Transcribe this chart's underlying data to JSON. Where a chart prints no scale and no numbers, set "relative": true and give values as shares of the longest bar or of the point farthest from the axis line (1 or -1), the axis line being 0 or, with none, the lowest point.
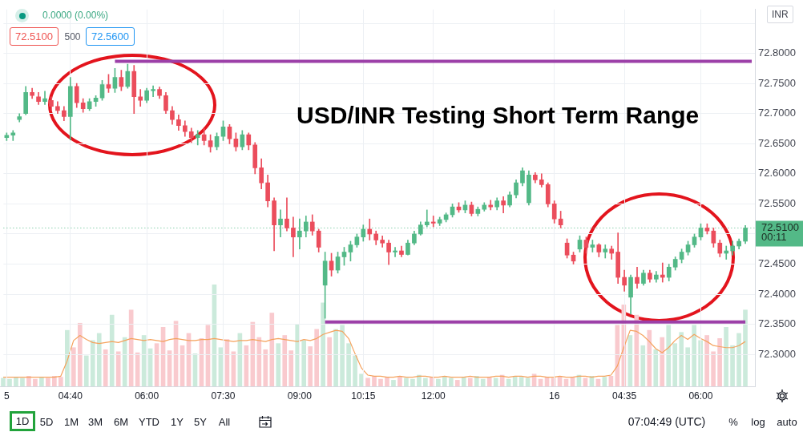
{
  "chart_data": [
    {
      "type": "candlestick",
      "title": "USD/INR Testing Short Term Range",
      "ylabel": "INR",
      "categories": [
        "5",
        null,
        null,
        null,
        null,
        null,
        null,
        null,
        null,
        null,
        "04:40",
        null,
        null,
        null,
        null,
        null,
        null,
        null,
        null,
        null,
        null,
        null,
        "06:00",
        null,
        null,
        null,
        null,
        null,
        null,
        null,
        null,
        null,
        null,
        null,
        "07:30",
        null,
        null,
        null,
        null,
        null,
        null,
        null,
        null,
        null,
        null,
        null,
        "09:00",
        null,
        null,
        null,
        null,
        null,
        null,
        null,
        null,
        null,
        "10:15",
        null,
        null,
        null,
        null,
        null,
        null,
        null,
        null,
        null,
        null,
        "12:00",
        null,
        null,
        null,
        null,
        null,
        null,
        null,
        null,
        null,
        null,
        null,
        null,
        null,
        null,
        null,
        null,
        null,
        null,
        "16",
        null,
        null,
        null,
        null,
        null,
        null,
        null,
        null,
        null,
        null,
        "04:35",
        null,
        null,
        null,
        null,
        null,
        null,
        null,
        null,
        null,
        null,
        null,
        "06:00",
        null,
        null,
        null,
        null,
        null,
        null,
        null,
        null
      ],
      "ohlc": [
        [
          72.66,
          72.668,
          72.655,
          72.664
        ],
        [
          72.664,
          72.672,
          72.655,
          72.668
        ],
        [
          72.69,
          72.7,
          72.686,
          72.695
        ],
        [
          72.7,
          72.745,
          72.698,
          72.735
        ],
        [
          72.735,
          72.742,
          72.725,
          72.73
        ],
        [
          72.728,
          72.735,
          72.715,
          72.72
        ],
        [
          72.72,
          72.737,
          72.715,
          72.725
        ],
        [
          72.722,
          72.728,
          72.705,
          72.712
        ],
        [
          72.712,
          72.72,
          72.7,
          72.705
        ],
        [
          72.705,
          72.712,
          72.688,
          72.695
        ],
        [
          72.695,
          72.76,
          72.656,
          72.745
        ],
        [
          72.745,
          72.75,
          72.71,
          72.718
        ],
        [
          72.718,
          72.725,
          72.702,
          72.708
        ],
        [
          72.708,
          72.725,
          72.705,
          72.72
        ],
        [
          72.72,
          72.73,
          72.712,
          72.726
        ],
        [
          72.726,
          72.755,
          72.722,
          72.748
        ],
        [
          72.748,
          72.765,
          72.735,
          72.742
        ],
        [
          72.742,
          72.775,
          72.735,
          72.76
        ],
        [
          72.76,
          72.772,
          72.738,
          72.745
        ],
        [
          72.745,
          72.782,
          72.742,
          72.77
        ],
        [
          72.77,
          72.78,
          72.7,
          72.728
        ],
        [
          72.728,
          72.74,
          72.712,
          72.722
        ],
        [
          72.722,
          72.742,
          72.718,
          72.738
        ],
        [
          72.738,
          72.746,
          72.728,
          72.74
        ],
        [
          72.74,
          72.744,
          72.725,
          72.73
        ],
        [
          72.73,
          72.735,
          72.7,
          72.705
        ],
        [
          72.705,
          72.712,
          72.682,
          72.69
        ],
        [
          72.69,
          72.698,
          72.672,
          72.68
        ],
        [
          72.68,
          72.688,
          72.662,
          72.67
        ],
        [
          72.67,
          72.676,
          72.652,
          72.66
        ],
        [
          72.66,
          72.672,
          72.648,
          72.665
        ],
        [
          72.665,
          72.675,
          72.648,
          72.655
        ],
        [
          72.655,
          72.665,
          72.636,
          72.645
        ],
        [
          72.645,
          72.668,
          72.64,
          72.662
        ],
        [
          72.662,
          72.688,
          72.655,
          72.678
        ],
        [
          72.678,
          72.682,
          72.65,
          72.658
        ],
        [
          72.658,
          72.668,
          72.638,
          72.645
        ],
        [
          72.645,
          72.672,
          72.64,
          72.665
        ],
        [
          72.665,
          72.668,
          72.64,
          72.648
        ],
        [
          72.648,
          72.652,
          72.6,
          72.61
        ],
        [
          72.61,
          72.625,
          72.575,
          72.585
        ],
        [
          72.585,
          72.598,
          72.545,
          72.555
        ],
        [
          72.555,
          72.56,
          72.472,
          72.515
        ],
        [
          72.515,
          72.54,
          72.495,
          72.525
        ],
        [
          72.525,
          72.56,
          72.505,
          72.51
        ],
        [
          72.51,
          72.528,
          72.462,
          72.495
        ],
        [
          72.495,
          72.525,
          72.475,
          72.505
        ],
        [
          72.505,
          72.53,
          72.495,
          72.52
        ],
        [
          72.52,
          72.532,
          72.498,
          72.505
        ],
        [
          72.505,
          72.508,
          72.47,
          72.478
        ],
        [
          72.415,
          72.47,
          72.36,
          72.455
        ],
        [
          72.455,
          72.468,
          72.43,
          72.44
        ],
        [
          72.44,
          72.47,
          72.435,
          72.462
        ],
        [
          72.462,
          72.478,
          72.448,
          72.47
        ],
        [
          72.47,
          72.488,
          72.455,
          72.482
        ],
        [
          72.482,
          72.5,
          72.478,
          72.495
        ],
        [
          72.495,
          72.515,
          72.488,
          72.508
        ],
        [
          72.508,
          72.525,
          72.49,
          72.5
        ],
        [
          72.5,
          72.505,
          72.482,
          72.49
        ],
        [
          72.49,
          72.497,
          72.478,
          72.485
        ],
        [
          72.485,
          72.49,
          72.449,
          72.47
        ],
        [
          72.47,
          72.478,
          72.462,
          72.472
        ],
        [
          72.472,
          72.48,
          72.462,
          72.466
        ],
        [
          72.466,
          72.49,
          72.465,
          72.485
        ],
        [
          72.485,
          72.505,
          72.482,
          72.5
        ],
        [
          72.5,
          72.52,
          72.498,
          72.515
        ],
        [
          72.515,
          72.54,
          72.512,
          72.52
        ],
        [
          72.52,
          72.53,
          72.512,
          72.518
        ],
        [
          72.518,
          72.528,
          72.514,
          72.524
        ],
        [
          72.524,
          72.535,
          72.52,
          72.532
        ],
        [
          72.532,
          72.55,
          72.528,
          72.545
        ],
        [
          72.545,
          72.552,
          72.536,
          72.54
        ],
        [
          72.54,
          72.555,
          72.535,
          72.548
        ],
        [
          72.548,
          72.553,
          72.53,
          72.534
        ],
        [
          72.534,
          72.545,
          72.53,
          72.541
        ],
        [
          72.541,
          72.552,
          72.538,
          72.548
        ],
        [
          72.548,
          72.556,
          72.54,
          72.545
        ],
        [
          72.545,
          72.56,
          72.54,
          72.555
        ],
        [
          72.555,
          72.562,
          72.535,
          72.548
        ],
        [
          72.548,
          72.57,
          72.545,
          72.565
        ],
        [
          72.565,
          72.59,
          72.56,
          72.585
        ],
        [
          72.585,
          72.61,
          72.58,
          72.605
        ],
        [
          72.552,
          72.605,
          72.548,
          72.598
        ],
        [
          72.598,
          72.602,
          72.585,
          72.59
        ],
        [
          72.59,
          72.6,
          72.578,
          72.582
        ],
        [
          72.582,
          72.585,
          72.545,
          72.55
        ],
        [
          72.55,
          72.555,
          72.518,
          72.525
        ],
        [
          72.525,
          72.538,
          72.51,
          72.515
        ],
        [
          72.485,
          72.492,
          72.46,
          72.465
        ],
        [
          72.465,
          72.47,
          72.45,
          72.455
        ],
        [
          72.475,
          72.497,
          72.47,
          72.49
        ],
        [
          72.49,
          72.495,
          72.468,
          72.478
        ],
        [
          72.478,
          72.49,
          72.47,
          72.482
        ],
        [
          72.482,
          72.484,
          72.462,
          72.47
        ],
        [
          72.47,
          72.482,
          72.46,
          72.475
        ],
        [
          72.475,
          72.48,
          72.458,
          72.468
        ],
        [
          72.47,
          72.502,
          72.418,
          72.428
        ],
        [
          72.428,
          72.44,
          72.405,
          72.415
        ],
        [
          72.395,
          72.432,
          72.367,
          72.428
        ],
        [
          72.428,
          72.445,
          72.41,
          72.418
        ],
        [
          72.418,
          72.44,
          72.415,
          72.435
        ],
        [
          72.435,
          72.44,
          72.42,
          72.425
        ],
        [
          72.425,
          72.438,
          72.42,
          72.432
        ],
        [
          72.432,
          72.452,
          72.42,
          72.428
        ],
        [
          72.428,
          72.45,
          72.422,
          72.445
        ],
        [
          72.445,
          72.462,
          72.44,
          72.458
        ],
        [
          72.458,
          72.475,
          72.452,
          72.47
        ],
        [
          72.47,
          72.488,
          72.465,
          72.482
        ],
        [
          72.482,
          72.5,
          72.478,
          72.495
        ],
        [
          72.495,
          72.517,
          72.49,
          72.51
        ],
        [
          72.51,
          72.517,
          72.5,
          72.505
        ],
        [
          72.505,
          72.51,
          72.478,
          72.485
        ],
        [
          72.485,
          72.49,
          72.462,
          72.468
        ],
        [
          72.468,
          72.48,
          72.458,
          72.472
        ],
        [
          72.472,
          72.488,
          72.465,
          72.48
        ],
        [
          72.48,
          72.492,
          72.475,
          72.488
        ],
        [
          72.488,
          72.514,
          72.484,
          72.51
        ],
        null
      ],
      "colors": [
        "#53b987",
        "#53b987",
        "#53b987",
        "#53b987",
        "#eb4d5c",
        "#eb4d5c",
        "#53b987",
        "#eb4d5c",
        "#eb4d5c",
        "#eb4d5c",
        "#53b987",
        "#eb4d5c",
        "#eb4d5c",
        "#53b987",
        "#53b987",
        "#53b987",
        "#eb4d5c",
        "#53b987",
        "#eb4d5c",
        "#53b987",
        "#eb4d5c",
        "#eb4d5c",
        "#53b987",
        "#53b987",
        "#eb4d5c",
        "#eb4d5c",
        "#eb4d5c",
        "#eb4d5c",
        "#eb4d5c",
        "#eb4d5c",
        "#53b987",
        "#eb4d5c",
        "#eb4d5c",
        "#53b987",
        "#53b987",
        "#eb4d5c",
        "#eb4d5c",
        "#53b987",
        "#eb4d5c",
        "#eb4d5c",
        "#eb4d5c",
        "#eb4d5c",
        "#eb4d5c",
        "#53b987",
        "#eb4d5c",
        "#eb4d5c",
        "#53b987",
        "#53b987",
        "#eb4d5c",
        "#eb4d5c",
        "#53b987",
        "#eb4d5c",
        "#53b987",
        "#53b987",
        "#53b987",
        "#53b987",
        "#53b987",
        "#eb4d5c",
        "#eb4d5c",
        "#eb4d5c",
        "#eb4d5c",
        "#53b987",
        "#eb4d5c",
        "#53b987",
        "#53b987",
        "#53b987",
        "#53b987",
        "#eb4d5c",
        "#53b987",
        "#53b987",
        "#53b987",
        "#eb4d5c",
        "#53b987",
        "#eb4d5c",
        "#53b987",
        "#53b987",
        "#eb4d5c",
        "#53b987",
        "#eb4d5c",
        "#53b987",
        "#53b987",
        "#53b987",
        "#53b987",
        "#eb4d5c",
        "#eb4d5c",
        "#eb4d5c",
        "#eb4d5c",
        "#eb4d5c",
        "#eb4d5c",
        "#eb4d5c",
        "#53b987",
        "#eb4d5c",
        "#53b987",
        "#eb4d5c",
        "#53b987",
        "#eb4d5c",
        "#eb4d5c",
        "#eb4d5c",
        "#53b987",
        "#eb4d5c",
        "#53b987",
        "#eb4d5c",
        "#53b987",
        "#eb4d5c",
        "#53b987",
        "#53b987",
        "#53b987",
        "#53b987",
        "#53b987",
        "#53b987",
        "#eb4d5c",
        "#eb4d5c",
        "#eb4d5c",
        "#53b987",
        "#53b987",
        "#53b987",
        "#53b987",
        null
      ],
      "series": [
        {
          "type": "line",
          "color": "#9c40a8",
          "values": [
            null,
            null,
            null,
            null,
            null,
            null,
            null,
            null,
            null,
            null,
            null,
            null,
            null,
            null,
            null,
            null,
            null,
            72.787,
            72.787,
            72.787,
            72.787,
            72.787,
            72.787,
            72.787,
            72.787,
            72.787,
            72.787,
            72.787,
            72.787,
            72.787,
            72.787,
            72.787,
            72.787,
            72.787,
            72.787,
            72.787,
            72.787,
            72.787,
            72.787,
            72.787,
            72.787,
            72.787,
            72.787,
            72.787,
            72.787,
            72.787,
            72.787,
            72.787,
            72.787,
            72.787,
            72.787,
            72.787,
            72.787,
            72.787,
            72.787,
            72.787,
            72.787,
            72.787,
            72.787,
            72.787,
            72.787,
            72.787,
            72.787,
            72.787,
            72.787,
            72.787,
            72.787,
            72.787,
            72.787,
            72.787,
            72.787,
            72.787,
            72.787,
            72.787,
            72.787,
            72.787,
            72.787,
            72.787,
            72.787,
            72.787,
            72.787,
            72.787,
            72.787,
            72.787,
            72.787,
            72.787,
            72.787,
            72.787,
            72.787,
            72.787,
            72.787,
            72.787,
            72.787,
            72.787,
            72.787,
            72.787,
            72.787,
            72.787,
            72.787,
            72.787,
            72.787,
            72.787,
            72.787,
            72.787,
            72.787,
            72.787,
            72.787,
            72.787,
            72.787,
            72.787,
            72.787,
            72.787,
            72.787,
            72.787,
            72.787,
            72.787,
            72.787,
            72.787
          ]
        },
        {
          "type": "line",
          "color": "#9c40a8",
          "values": [
            null,
            null,
            null,
            null,
            null,
            null,
            null,
            null,
            null,
            null,
            null,
            null,
            null,
            null,
            null,
            null,
            null,
            null,
            null,
            null,
            null,
            null,
            null,
            null,
            null,
            null,
            null,
            null,
            null,
            null,
            null,
            null,
            null,
            null,
            null,
            null,
            null,
            null,
            null,
            null,
            null,
            null,
            null,
            null,
            null,
            null,
            null,
            null,
            null,
            null,
            72.354,
            72.354,
            72.354,
            72.354,
            72.354,
            72.354,
            72.354,
            72.354,
            72.354,
            72.354,
            72.354,
            72.354,
            72.354,
            72.354,
            72.354,
            72.354,
            72.354,
            72.354,
            72.354,
            72.354,
            72.354,
            72.354,
            72.354,
            72.354,
            72.354,
            72.354,
            72.354,
            72.354,
            72.354,
            72.354,
            72.354,
            72.354,
            72.354,
            72.354,
            72.354,
            72.354,
            72.354,
            72.354,
            72.354,
            72.354,
            72.354,
            72.354,
            72.354,
            72.354,
            72.354,
            72.354,
            72.354,
            72.354,
            72.354,
            72.354,
            72.354,
            72.354,
            72.354,
            72.354,
            72.354,
            72.354,
            72.354,
            72.354,
            72.354,
            72.354,
            72.354,
            72.354,
            72.354,
            72.354,
            72.354,
            72.354,
            72.354,
            null
          ]
        }
      ],
      "ylim": [
        72.247,
        72.873
      ],
      "yticks": [
        {
          "value": 72.3,
          "label": "72.3000"
        },
        {
          "value": 72.35,
          "label": "72.3500"
        },
        {
          "value": 72.4,
          "label": "72.4000"
        },
        {
          "value": 72.45,
          "label": "72.4500"
        },
        {
          "value": 72.5,
          "label": null
        },
        {
          "value": 72.55,
          "label": "72.5500"
        },
        {
          "value": 72.6,
          "label": "72.6000"
        },
        {
          "value": 72.65,
          "label": "72.6500"
        },
        {
          "value": 72.7,
          "label": "72.7000"
        },
        {
          "value": 72.75,
          "label": "72.7500"
        },
        {
          "value": 72.8,
          "label": "72.8000"
        },
        {
          "value": 72.85,
          "label": null
        }
      ],
      "grid": true,
      "ref_lines": [
        {
          "axis": "y",
          "value": 72.51,
          "label": "72.5100",
          "color": "#53b987",
          "line_style": "dotted"
        }
      ],
      "annotations": [
        "0.0000 (0.00%)",
        "72.5100",
        "500",
        "72.5600",
        "00:11",
        "1D",
        "5D",
        "1M",
        "3M",
        "6M",
        "YTD",
        "1Y",
        "5Y",
        "All",
        "07:04:49 (UTC)",
        "%",
        "log",
        "auto"
      ]
    },
    {
      "type": "bar",
      "relative": true,
      "categories": [
        null,
        null,
        null,
        null,
        null,
        null,
        null,
        null,
        null,
        null,
        null,
        null,
        null,
        null,
        null,
        null,
        null,
        null,
        null,
        null,
        null,
        null,
        null,
        null,
        null,
        null,
        null,
        null,
        null,
        null,
        null,
        null,
        null,
        null,
        null,
        null,
        null,
        null,
        null,
        null,
        null,
        null,
        null,
        null,
        null,
        null,
        null,
        null,
        null,
        null,
        null,
        null,
        null,
        null,
        null,
        null,
        null,
        null,
        null,
        null,
        null,
        null,
        null,
        null,
        null,
        null,
        null,
        null,
        null,
        null,
        null,
        null,
        null,
        null,
        null,
        null,
        null,
        null,
        null,
        null,
        null,
        null,
        null,
        null,
        null,
        null,
        null,
        null,
        null,
        null,
        null,
        null,
        null,
        null,
        null,
        null,
        null,
        null,
        null,
        null,
        null,
        null,
        null,
        null,
        null,
        null,
        null,
        null,
        null,
        null,
        null,
        null,
        null,
        null,
        null,
        null,
        null,
        null
      ],
      "series": [
        {
          "type": "bar",
          "values": [
            0.08,
            0.07,
            0.09,
            0.08,
            0.1,
            0.07,
            0.09,
            0.08,
            0.1,
            0.09,
            0.55,
            0.38,
            0.62,
            0.3,
            0.45,
            0.52,
            0.36,
            0.7,
            0.34,
            0.48,
            0.75,
            0.33,
            0.5,
            0.37,
            0.42,
            0.58,
            0.35,
            0.64,
            0.4,
            0.52,
            0.32,
            0.47,
            0.6,
            1,
            0.38,
            0.46,
            0.34,
            0.52,
            0.4,
            0.63,
            0.48,
            0.36,
            0.72,
            0.42,
            0.5,
            0.35,
            0.61,
            0.45,
            0.39,
            0.56,
            0.82,
            0.48,
            0.56,
            0.6,
            0.42,
            0.3,
            0.12,
            0.08,
            0.1,
            0.07,
            0.09,
            0.06,
            0.1,
            0.08,
            0.07,
            0.11,
            0.08,
            0.09,
            0.07,
            0.1,
            0.08,
            0.06,
            0.09,
            0.08,
            0.1,
            0.07,
            0.09,
            0.08,
            0.11,
            0.07,
            0.1,
            0.09,
            0.08,
            0.12,
            0.07,
            0.09,
            0.08,
            0.1,
            0.07,
            0.09,
            0.11,
            0.08,
            0.1,
            0.07,
            0.09,
            0.1,
            0.6,
            0.8,
            0.5,
            0.7,
            0.4,
            0.55,
            0.36,
            0.48,
            0.6,
            0.42,
            0.53,
            0.38,
            0.6,
            0.45,
            0.5,
            0.34,
            0.47,
            0.58,
            0.4,
            0.52,
            0.75,
            null
          ],
          "colors": [
            "#cbeadb",
            "#cbeadb",
            "#cbeadb",
            "#cbeadb",
            "#f9cace",
            "#f9cace",
            "#cbeadb",
            "#f9cace",
            "#f9cace",
            "#f9cace",
            "#cbeadb",
            "#f9cace",
            "#f9cace",
            "#cbeadb",
            "#cbeadb",
            "#cbeadb",
            "#f9cace",
            "#cbeadb",
            "#f9cace",
            "#cbeadb",
            "#f9cace",
            "#f9cace",
            "#cbeadb",
            "#cbeadb",
            "#f9cace",
            "#f9cace",
            "#f9cace",
            "#f9cace",
            "#f9cace",
            "#f9cace",
            "#cbeadb",
            "#f9cace",
            "#f9cace",
            "#cbeadb",
            "#cbeadb",
            "#f9cace",
            "#f9cace",
            "#cbeadb",
            "#f9cace",
            "#f9cace",
            "#f9cace",
            "#f9cace",
            "#f9cace",
            "#cbeadb",
            "#f9cace",
            "#f9cace",
            "#cbeadb",
            "#cbeadb",
            "#f9cace",
            "#f9cace",
            "#cbeadb",
            "#f9cace",
            "#cbeadb",
            "#cbeadb",
            "#cbeadb",
            "#cbeadb",
            "#cbeadb",
            "#f9cace",
            "#f9cace",
            "#f9cace",
            "#f9cace",
            "#cbeadb",
            "#f9cace",
            "#cbeadb",
            "#cbeadb",
            "#cbeadb",
            "#cbeadb",
            "#f9cace",
            "#cbeadb",
            "#cbeadb",
            "#cbeadb",
            "#f9cace",
            "#cbeadb",
            "#f9cace",
            "#cbeadb",
            "#cbeadb",
            "#f9cace",
            "#cbeadb",
            "#f9cace",
            "#cbeadb",
            "#cbeadb",
            "#cbeadb",
            "#cbeadb",
            "#f9cace",
            "#f9cace",
            "#f9cace",
            "#f9cace",
            "#f9cace",
            "#f9cace",
            "#f9cace",
            "#cbeadb",
            "#f9cace",
            "#cbeadb",
            "#f9cace",
            "#cbeadb",
            "#f9cace",
            "#f9cace",
            "#f9cace",
            "#cbeadb",
            "#f9cace",
            "#cbeadb",
            "#f9cace",
            "#cbeadb",
            "#f9cace",
            "#cbeadb",
            "#cbeadb",
            "#cbeadb",
            "#cbeadb",
            "#cbeadb",
            "#cbeadb",
            "#f9cace",
            "#f9cace",
            "#f9cace",
            "#cbeadb",
            "#cbeadb",
            "#cbeadb",
            "#cbeadb",
            null
          ]
        },
        {
          "type": "line",
          "color": "#f5a25d",
          "values": [
            0.09,
            0.09,
            0.09,
            0.09,
            0.09,
            0.09,
            0.09,
            0.09,
            0.09,
            0.1,
            0.25,
            0.45,
            0.5,
            0.46,
            0.43,
            0.42,
            0.43,
            0.44,
            0.43,
            0.45,
            0.47,
            0.46,
            0.45,
            0.46,
            0.45,
            0.44,
            0.46,
            0.47,
            0.46,
            0.45,
            0.45,
            0.46,
            0.46,
            0.47,
            0.46,
            0.45,
            0.44,
            0.45,
            0.45,
            0.46,
            0.45,
            0.44,
            0.46,
            0.47,
            0.46,
            0.45,
            0.44,
            0.46,
            0.45,
            0.47,
            0.51,
            0.53,
            0.55,
            0.54,
            0.47,
            0.32,
            0.18,
            0.11,
            0.1,
            0.1,
            0.09,
            0.09,
            0.1,
            0.09,
            0.09,
            0.1,
            0.1,
            0.09,
            0.09,
            0.1,
            0.09,
            0.09,
            0.09,
            0.1,
            0.09,
            0.09,
            0.09,
            0.1,
            0.1,
            0.09,
            0.1,
            0.1,
            0.09,
            0.1,
            0.1,
            0.09,
            0.09,
            0.1,
            0.09,
            0.09,
            0.1,
            0.1,
            0.09,
            0.1,
            0.1,
            0.11,
            0.2,
            0.38,
            0.55,
            0.54,
            0.5,
            0.44,
            0.37,
            0.33,
            0.38,
            0.45,
            0.5,
            0.46,
            0.51,
            0.47,
            0.44,
            0.4,
            0.39,
            0.38,
            0.38,
            0.4,
            0.44,
            null
          ]
        }
      ]
    }
  ]
}
